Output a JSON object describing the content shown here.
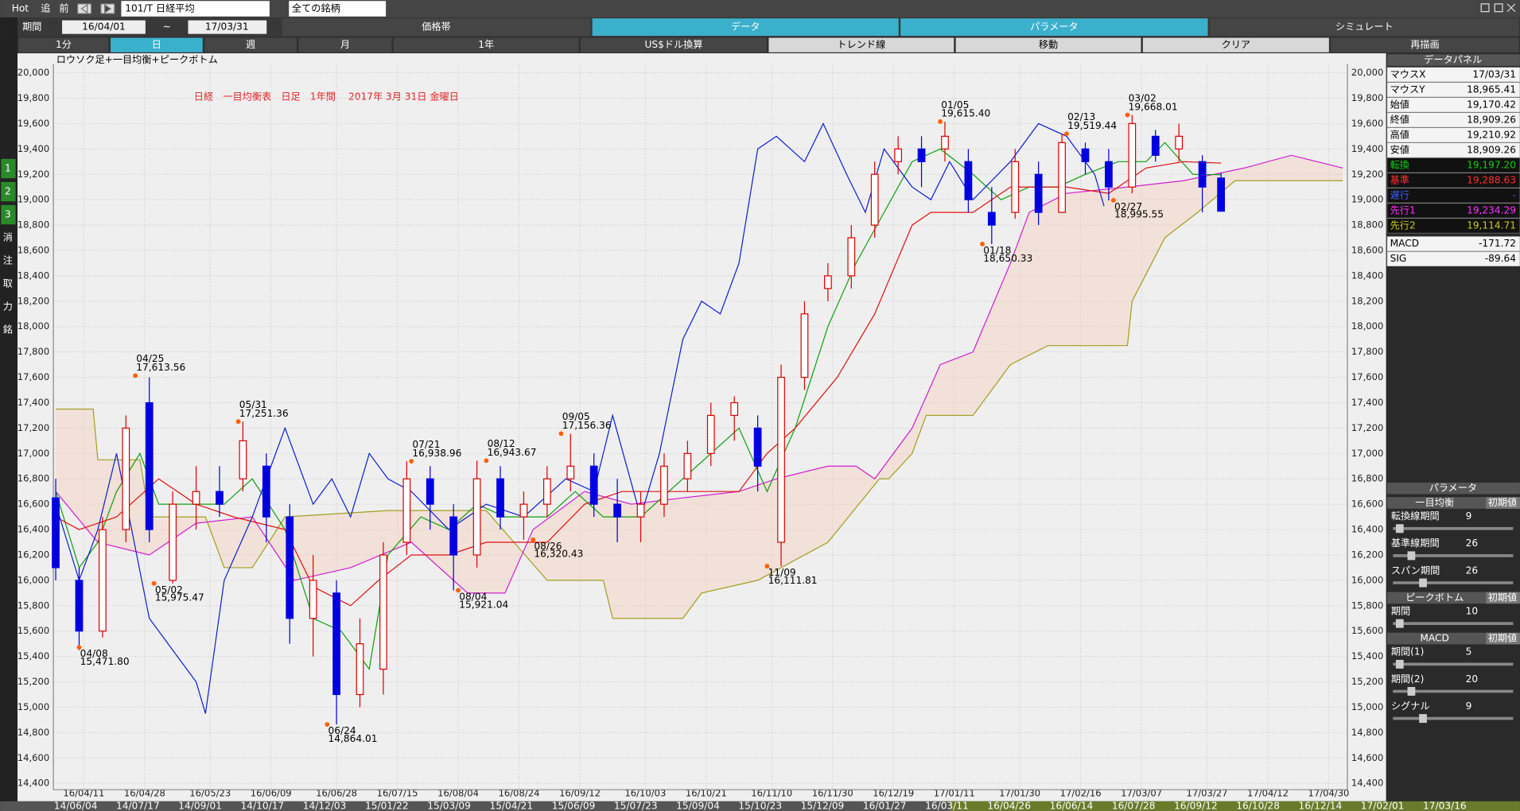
{
  "toolbar": {
    "hot": "Hot",
    "buttons": [
      "追",
      "前"
    ],
    "symbol": "101/T 日経平均",
    "market": "全ての銘柄",
    "period_label": "期間",
    "from": "16/04/01",
    "tilde": "~",
    "to": "17/03/31",
    "tabs": [
      "価格帯",
      "データ",
      "パラメータ",
      "シミュレート"
    ],
    "buttons2": [
      "1分",
      "日",
      "週",
      "月",
      "1年",
      "US$ドル換算",
      "トレンド線",
      "移動",
      "クリア",
      "再描画"
    ]
  },
  "side_labels": [
    "1",
    "2",
    "3",
    "消",
    "注",
    "取",
    "力",
    "銘"
  ],
  "chart_data": {
    "type": "candlestick",
    "subtitle": "ロウソク足+一目均衡+ピークボトム",
    "title": "日経　一目均衡表　日足　1年間　 2017年 3月 31日 金曜日",
    "up_color": "#e00000",
    "down_color": "#0000e0",
    "grid": true,
    "xlim": [
      -0.5,
      276
    ],
    "ylim": [
      14350,
      20070
    ],
    "xticks": [
      {
        "value": 6,
        "label": "16/04/11"
      },
      {
        "value": 19,
        "label": "16/04/28"
      },
      {
        "value": 33,
        "label": "16/05/23"
      },
      {
        "value": 46,
        "label": "16/06/09"
      },
      {
        "value": 60,
        "label": "16/06/28"
      },
      {
        "value": 73,
        "label": "16/07/15"
      },
      {
        "value": 86,
        "label": "16/08/04"
      },
      {
        "value": 99,
        "label": "16/08/24"
      },
      {
        "value": 112,
        "label": "16/09/12"
      },
      {
        "value": 126,
        "label": "16/10/03"
      },
      {
        "value": 139,
        "label": "16/10/21"
      },
      {
        "value": 153,
        "label": "16/11/10"
      },
      {
        "value": 166,
        "label": "16/11/30"
      },
      {
        "value": 179,
        "label": "16/12/19"
      },
      {
        "value": 192,
        "label": "17/01/11"
      },
      {
        "value": 206,
        "label": "17/01/30"
      },
      {
        "value": 219,
        "label": "17/02/16"
      },
      {
        "value": 232,
        "label": "17/03/07"
      },
      {
        "value": 246,
        "label": "17/03/27"
      },
      {
        "value": 259,
        "label": "17/04/12"
      },
      {
        "value": 272,
        "label": "17/04/30"
      }
    ],
    "yticks": [
      {
        "value": 14400,
        "label": "14,400"
      },
      {
        "value": 14600,
        "label": "14,600"
      },
      {
        "value": 14800,
        "label": "14,800"
      },
      {
        "value": 15000,
        "label": "15,000"
      },
      {
        "value": 15200,
        "label": "15,200"
      },
      {
        "value": 15400,
        "label": "15,400"
      },
      {
        "value": 15600,
        "label": "15,600"
      },
      {
        "value": 15800,
        "label": "15,800"
      },
      {
        "value": 16000,
        "label": "16,000"
      },
      {
        "value": 16200,
        "label": "16,200"
      },
      {
        "value": 16400,
        "label": "16,400"
      },
      {
        "value": 16600,
        "label": "16,600"
      },
      {
        "value": 16800,
        "label": "16,800"
      },
      {
        "value": 17000,
        "label": "17,000"
      },
      {
        "value": 17200,
        "label": "17,200"
      },
      {
        "value": 17400,
        "label": "17,400"
      },
      {
        "value": 17600,
        "label": "17,600"
      },
      {
        "value": 17800,
        "label": "17,800"
      },
      {
        "value": 18000,
        "label": "18,000"
      },
      {
        "value": 18200,
        "label": "18,200"
      },
      {
        "value": 18400,
        "label": "18,400"
      },
      {
        "value": 18600,
        "label": "18,600"
      },
      {
        "value": 18800,
        "label": "18,800"
      },
      {
        "value": 19000,
        "label": "19,000"
      },
      {
        "value": 19200,
        "label": "19,200"
      },
      {
        "value": 19400,
        "label": "19,400"
      },
      {
        "value": 19600,
        "label": "19,600"
      },
      {
        "value": 19800,
        "label": "19,800"
      },
      {
        "value": 20000,
        "label": "20,000"
      }
    ],
    "candles": {
      "x": [
        0,
        5,
        10,
        15,
        20,
        25,
        30,
        35,
        40,
        45,
        50,
        55,
        60,
        65,
        70,
        75,
        80,
        85,
        90,
        95,
        100,
        105,
        110,
        115,
        120,
        125,
        130,
        135,
        140,
        145,
        150,
        155,
        160,
        165,
        170,
        175,
        180,
        185,
        190,
        195,
        200,
        205,
        210,
        215,
        220,
        225,
        230,
        235,
        240,
        245,
        249
      ],
      "open": [
        16650,
        16000,
        15600,
        16400,
        17400,
        16000,
        16600,
        16700,
        16800,
        16900,
        16500,
        15700,
        15900,
        15100,
        15300,
        16300,
        16800,
        16500,
        16200,
        16800,
        16500,
        16600,
        16800,
        16900,
        16600,
        16500,
        16600,
        16800,
        17000,
        17300,
        17200,
        16300,
        17600,
        18300,
        18400,
        18800,
        19300,
        19400,
        19400,
        19300,
        18900,
        18900,
        19200,
        18900,
        19400,
        19300,
        19100,
        19500,
        19400,
        19300,
        19170.42
      ],
      "high": [
        16800,
        16100,
        16500,
        17300,
        17600,
        16700,
        16900,
        16900,
        17251,
        17000,
        16600,
        16200,
        16000,
        15700,
        16300,
        16938,
        16900,
        16600,
        16943,
        16900,
        16700,
        16900,
        17156,
        17000,
        16800,
        16700,
        17000,
        17100,
        17400,
        17450,
        17300,
        17700,
        18200,
        18500,
        18800,
        19300,
        19500,
        19500,
        19615,
        19400,
        19100,
        19400,
        19300,
        19519,
        19450,
        19400,
        19668,
        19550,
        19600,
        19350,
        19210.92
      ],
      "low": [
        16000,
        15450,
        15550,
        16300,
        16300,
        15975,
        16400,
        16500,
        16700,
        16300,
        15500,
        15400,
        14864,
        15000,
        15100,
        16200,
        16400,
        15921,
        16100,
        16400,
        16320,
        16500,
        16700,
        16500,
        16300,
        16300,
        16500,
        16700,
        16900,
        17100,
        16700,
        16111,
        17500,
        18200,
        18300,
        18700,
        19200,
        19100,
        19300,
        18900,
        18650,
        18850,
        18800,
        18900,
        19200,
        18995,
        19050,
        19300,
        19300,
        18900,
        18909.26
      ],
      "close": [
        16100,
        15600,
        16400,
        17200,
        16400,
        16600,
        16700,
        16600,
        17100,
        16500,
        15700,
        16000,
        15100,
        15500,
        16200,
        16800,
        16600,
        16200,
        16800,
        16500,
        16600,
        16800,
        16900,
        16600,
        16500,
        16600,
        16900,
        17000,
        17300,
        17400,
        16900,
        17600,
        18100,
        18400,
        18700,
        19200,
        19400,
        19300,
        19500,
        19000,
        18800,
        19300,
        18900,
        19450,
        19300,
        19100,
        19600,
        19350,
        19500,
        19100,
        18909.26
      ]
    },
    "series": [
      {
        "name": "先行2",
        "color": "#a0a020",
        "x": [
          0,
          8,
          9,
          18,
          20,
          32,
          36,
          42,
          49,
          71,
          92,
          105,
          117,
          119,
          134,
          138,
          150,
          165,
          176,
          178,
          183,
          186,
          196,
          204,
          212,
          229,
          230,
          237,
          244,
          252,
          275
        ],
        "values": [
          17350,
          17350,
          16950,
          16950,
          16500,
          16500,
          16100,
          16100,
          16500,
          16550,
          16550,
          16000,
          16000,
          15700,
          15700,
          15900,
          16000,
          16300,
          16800,
          16800,
          17000,
          17300,
          17300,
          17700,
          17850,
          17850,
          18200,
          18700,
          18900,
          19150,
          19150
        ]
      },
      {
        "name": "先行1",
        "color": "#d020d0",
        "x": [
          0,
          9,
          20,
          30,
          42,
          51,
          63,
          76,
          88,
          96,
          102,
          113,
          123,
          134,
          146,
          154,
          165,
          171,
          175,
          183,
          189,
          196,
          204,
          208,
          216,
          229,
          241,
          254,
          264,
          275
        ],
        "values": [
          16700,
          16300,
          16200,
          16450,
          16500,
          16000,
          16100,
          16300,
          15900,
          15900,
          16400,
          16700,
          16600,
          16650,
          16700,
          16800,
          16900,
          16900,
          16800,
          17200,
          17700,
          17800,
          18500,
          18900,
          19050,
          19100,
          19150,
          19250,
          19350,
          19250
        ]
      },
      {
        "name": "転換",
        "color": "#10a010",
        "x": [
          0,
          5,
          9,
          13,
          18,
          22,
          30,
          36,
          42,
          49,
          55,
          61,
          67,
          71,
          78,
          84,
          90,
          96,
          105,
          111,
          117,
          125,
          134,
          140,
          146,
          152,
          158,
          165,
          171,
          177,
          183,
          189,
          196,
          202,
          208,
          214,
          220,
          227,
          233,
          237,
          243,
          249
        ],
        "values": [
          16700,
          16100,
          16300,
          16700,
          17000,
          16600,
          16600,
          16600,
          16800,
          16400,
          15700,
          15600,
          15300,
          16200,
          16500,
          16400,
          16600,
          16500,
          16500,
          16700,
          16500,
          16500,
          16800,
          17000,
          17200,
          16700,
          17200,
          18000,
          18500,
          18900,
          19300,
          19400,
          19200,
          19000,
          19100,
          19100,
          19200,
          19300,
          19300,
          19450,
          19200,
          19197.2
        ]
      },
      {
        "name": "基準",
        "color": "#e01010",
        "x": [
          0,
          5,
          13,
          22,
          30,
          38,
          49,
          55,
          63,
          69,
          76,
          84,
          92,
          105,
          113,
          121,
          134,
          146,
          152,
          158,
          167,
          175,
          183,
          187,
          196,
          204,
          216,
          225,
          233,
          241,
          249
        ],
        "values": [
          16500,
          16400,
          16500,
          16800,
          16600,
          16500,
          16400,
          15950,
          15800,
          16000,
          16200,
          16200,
          16300,
          16300,
          16600,
          16700,
          16700,
          16700,
          17000,
          17200,
          17600,
          18100,
          18800,
          18900,
          18900,
          19100,
          19100,
          19050,
          19250,
          19300,
          19288.63
        ]
      },
      {
        "name": "遅行",
        "color": "#1020d0",
        "x": [
          0,
          5,
          9,
          13,
          20,
          26,
          30,
          32,
          36,
          42,
          49,
          55,
          59,
          63,
          67,
          71,
          76,
          84,
          92,
          100,
          109,
          115,
          119,
          125,
          129,
          134,
          138,
          142,
          146,
          150,
          154,
          160,
          164,
          169,
          173,
          177,
          183,
          187,
          191,
          196,
          204,
          210,
          216,
          222,
          224
        ],
        "values": [
          16600,
          16000,
          16400,
          17000,
          15700,
          15400,
          15200,
          14950,
          16000,
          16500,
          17200,
          16600,
          16800,
          16500,
          17000,
          16800,
          16700,
          16400,
          16600,
          16500,
          16800,
          16700,
          17300,
          16500,
          17000,
          17900,
          18200,
          18100,
          18500,
          19400,
          19500,
          19300,
          19600,
          19200,
          18900,
          19400,
          19100,
          19000,
          19300,
          19000,
          19300,
          19600,
          19500,
          19200,
          18950
        ]
      }
    ],
    "peaks": {
      "x": [
        17,
        39,
        76,
        92,
        108,
        189,
        216,
        229
      ],
      "values": [
        17613.56,
        17251.36,
        16938.96,
        16943.67,
        17156.36,
        19615.4,
        19519.44,
        19668.01
      ],
      "dates": [
        "04/25",
        "05/31",
        "07/21",
        "08/12",
        "09/05",
        "01/05",
        "02/13",
        "03/02"
      ],
      "value_labels": [
        "17,613.56",
        "17,251.36",
        "16,938.96",
        "16,943.67",
        "17,156.36",
        "19,615.40",
        "19,519.44",
        "19,668.01"
      ]
    },
    "bottoms": {
      "x": [
        5,
        21,
        58,
        86,
        102,
        152,
        198,
        226
      ],
      "values": [
        15471.8,
        15975.47,
        14864.01,
        15921.04,
        16320.43,
        16111.81,
        18650.33,
        18995.55
      ],
      "dates": [
        "04/08",
        "05/02",
        "06/24",
        "08/04",
        "08/26",
        "11/09",
        "01/18",
        "02/27"
      ],
      "value_labels": [
        "15,471.80",
        "15,975.47",
        "14,864.01",
        "15,921.04",
        "16,320.43",
        "16,111.81",
        "18,650.33",
        "18,995.55"
      ]
    }
  },
  "data_panel": {
    "title": "データパネル",
    "rows": [
      {
        "label": "マウスX",
        "value": "17/03/31"
      },
      {
        "label": "マウスY",
        "value": "18,965.41"
      },
      {
        "label": "始値",
        "value": "19,170.42"
      },
      {
        "label": "終値",
        "value": "18,909.26"
      },
      {
        "label": "高値",
        "value": "19,210.92"
      },
      {
        "label": "安値",
        "value": "18,909.26"
      },
      {
        "label": "転換",
        "value": "19,197.20",
        "color": "#10d010"
      },
      {
        "label": "基準",
        "value": "19,288.63",
        "color": "#ff3030"
      },
      {
        "label": "遅行",
        "value": "-",
        "color": "#4060ff"
      },
      {
        "label": "先行1",
        "value": "19,234.29",
        "color": "#ff30ff"
      },
      {
        "label": "先行2",
        "value": "19,114.71",
        "color": "#c8c820"
      },
      {
        "label": "MACD",
        "value": "-171.72"
      },
      {
        "label": "SIG",
        "value": "-89.64"
      }
    ]
  },
  "param_panel": {
    "title": "パラメータ",
    "groups": [
      {
        "name": "一目均衡",
        "reset": "初期値",
        "fields": [
          {
            "label": "転換線期間",
            "value": "9"
          },
          {
            "label": "基準線期間",
            "value": "26"
          },
          {
            "label": "スパン期間",
            "value": "26"
          }
        ]
      },
      {
        "name": "ピークボトム",
        "reset": "初期値",
        "fields": [
          {
            "label": "期間",
            "value": "10"
          }
        ]
      },
      {
        "name": "MACD",
        "reset": "初期値",
        "fields": [
          {
            "label": "期間(1)",
            "value": "5"
          },
          {
            "label": "期間(2)",
            "value": "20"
          },
          {
            "label": "シグナル",
            "value": "9"
          }
        ]
      }
    ]
  },
  "bottom_strip": [
    "14/06/04",
    "14/07/17",
    "14/09/01",
    "14/10/17",
    "14/12/03",
    "15/01/22",
    "15/03/09",
    "15/04/21",
    "15/06/09",
    "15/07/23",
    "15/09/04",
    "15/10/23",
    "15/12/09",
    "16/01/27",
    "16/03/11",
    "16/04/26",
    "16/06/14",
    "16/07/28",
    "16/09/12",
    "16/10/28",
    "16/12/14",
    "17/02/01",
    "17/03/16"
  ]
}
